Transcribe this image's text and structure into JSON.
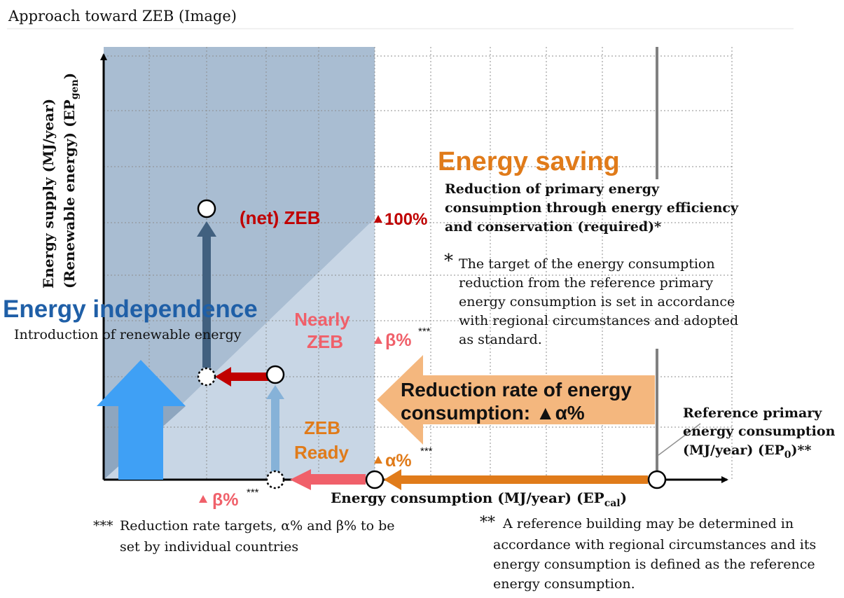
{
  "page_title": "Approach toward ZEB (Image)",
  "axes": {
    "y_label_line1": "Energy supply (MJ/year)",
    "y_label_line2_main": "(Renewable energy) (EP",
    "y_label_line2_sub": "gen",
    "y_label_line2_end": ")",
    "x_label_main": "Energy consumption (MJ/year) (EP",
    "x_label_sub": "cal",
    "x_label_end": ")"
  },
  "energy_saving": {
    "heading": "Energy saving",
    "desc_lines": [
      "Reduction of primary energy",
      "consumption through energy efficiency",
      "and conservation (required)*"
    ],
    "note_mark": "*",
    "note_lines": [
      "The target of the energy consumption",
      "reduction from the reference primary",
      "energy consumption is set in accordance",
      "with regional circumstances and adopted",
      "as standard."
    ]
  },
  "energy_independence": {
    "heading": "Energy independence",
    "sub": "Introduction of renewable energy"
  },
  "zeb_levels": {
    "net_zeb": "(net) ZEB",
    "nearly_zeb_line1": "Nearly",
    "nearly_zeb_line2": "ZEB",
    "zeb_ready_line1": "ZEB",
    "zeb_ready_line2": "Ready"
  },
  "markers": {
    "pct_100": "100%",
    "beta_right": "β%",
    "beta_right_sup": "***",
    "alpha": "α%",
    "alpha_sup": "***",
    "beta_bottom": "β%",
    "beta_bottom_sup": "***"
  },
  "reduction_rate": {
    "line1": "Reduction rate of energy",
    "line2": "consumption: ▲α%"
  },
  "reference": {
    "line1": "Reference primary",
    "line2": "energy consumption",
    "line3_main": "(MJ/year) (EP",
    "line3_sub": "0",
    "line3_end": ")**"
  },
  "footnotes": {
    "triple_mark": "***",
    "triple_lines": [
      "Reduction rate targets, α% and β% to be",
      "set by individual countries"
    ],
    "double_mark": "**",
    "double_lines": [
      "A reference building may be determined in",
      "accordance with regional circumstances and its",
      "energy consumption is defined as the reference",
      "energy consumption."
    ]
  },
  "colors": {
    "dark_region": "#a9bdd2",
    "mid_region": "#c8d6e5",
    "light_region": "#e2eaf2",
    "net_zeb_triangle": "#8ea6bf",
    "orange": "#e07b1a",
    "orange_light": "#f4b77e",
    "red": "#c00000",
    "pink": "#f0606a",
    "blue_title": "#1f5fa7",
    "blue_arrow": "#3fa0f5",
    "dark_arrow": "#41607f",
    "light_arrow": "#86b2d8"
  }
}
